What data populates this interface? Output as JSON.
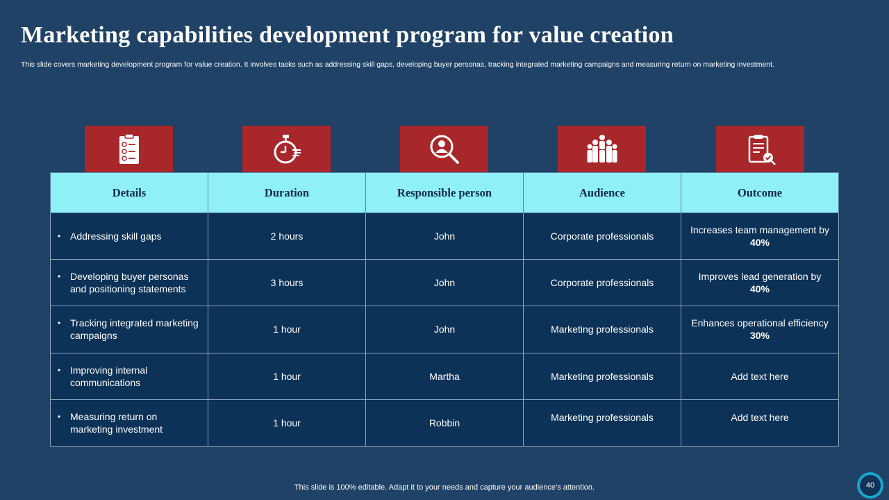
{
  "slide": {
    "title": "Marketing capabilities development  program for value creation",
    "subtitle": "This slide covers marketing development program for value creation. It involves tasks such as addressing skill gaps, developing buyer personas, tracking integrated marketing campaigns and measuring return on marketing investment.",
    "footer": "This slide is 100% editable. Adapt it to your needs and capture your audience’s attention.",
    "page_number": "40"
  },
  "icons": [
    "checklist-icon",
    "stopwatch-icon",
    "search-person-icon",
    "audience-group-icon",
    "clipboard-check-icon"
  ],
  "colors": {
    "background": "#1f4266",
    "icon_box": "#a8272b",
    "header_row": "#8ff0f8",
    "cell": "#0d3257"
  },
  "table": {
    "headers": [
      "Details",
      "Duration",
      "Responsible person",
      "Audience",
      "Outcome"
    ],
    "rows": [
      {
        "details": "Addressing skill gaps",
        "duration": "2 hours",
        "person": "John",
        "audience": "Corporate professionals",
        "outcome_text": "Increases team management by",
        "outcome_value": "40%"
      },
      {
        "details": "Developing buyer personas and positioning statements",
        "duration": "3 hours",
        "person": "John",
        "audience": "Corporate professionals",
        "outcome_text": "Improves lead generation by",
        "outcome_value": "40%"
      },
      {
        "details": "Tracking integrated marketing campaigns",
        "duration": "1 hour",
        "person": "John",
        "audience": "Marketing professionals",
        "outcome_text": "Enhances operational efficiency",
        "outcome_value": "30%"
      },
      {
        "details": "Improving internal communications",
        "duration": "1 hour",
        "person": "Martha",
        "audience": "Marketing professionals",
        "outcome_text": "Add text here",
        "outcome_value": ""
      },
      {
        "details": "Measuring return on marketing investment",
        "duration": "1 hour",
        "person": "Robbin",
        "audience": "Marketing professionals",
        "outcome_text": "Add text here",
        "outcome_value": ""
      }
    ]
  }
}
